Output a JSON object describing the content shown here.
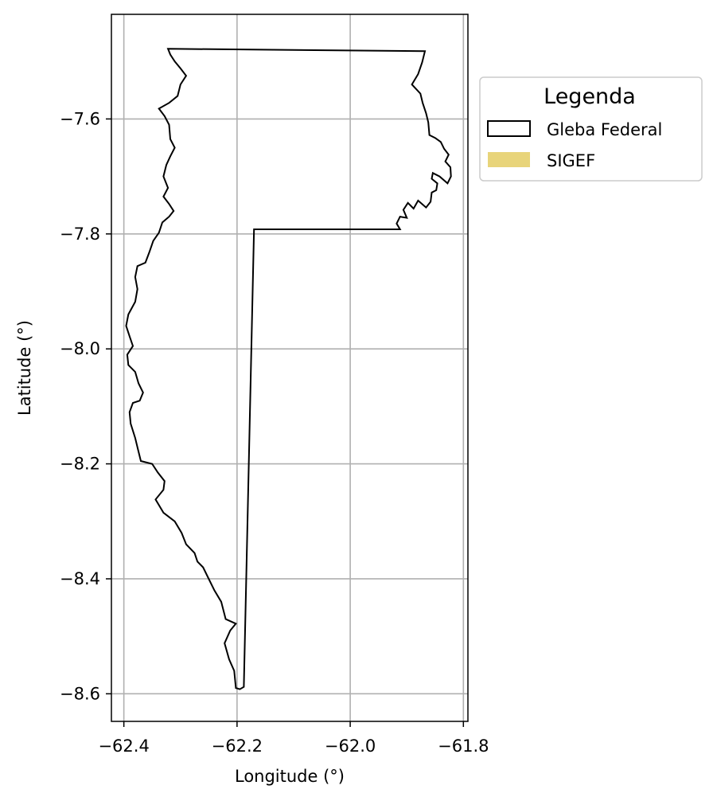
{
  "chart_data": {
    "type": "map",
    "xlabel": "Longitude (°)",
    "ylabel": "Latitude (°)",
    "xlim": [
      -62.422,
      -61.792
    ],
    "ylim": [
      -8.648,
      -7.418
    ],
    "x_ticks": [
      -62.4,
      -62.2,
      -62.0,
      -61.8
    ],
    "x_tick_labels": [
      "−62.4",
      "−62.2",
      "−62.0",
      "−61.8"
    ],
    "y_ticks": [
      -7.6,
      -7.8,
      -8.0,
      -8.2,
      -8.4,
      -8.6
    ],
    "y_tick_labels": [
      "−7.6",
      "−7.8",
      "−8.0",
      "−8.2",
      "−8.4",
      "−8.6"
    ],
    "grid": true,
    "legend": {
      "title": "Legenda",
      "placement": "outside-right-top",
      "entries": [
        {
          "label": "Gleba Federal",
          "style": "outline",
          "color": "#000000"
        },
        {
          "label": "SIGEF",
          "style": "fill",
          "color": "#E8D47A"
        }
      ]
    },
    "layers": [
      {
        "name": "Gleba Federal",
        "edgecolor": "#000000",
        "facecolor": "none",
        "polygon": [
          [
            -62.322,
            -7.478
          ],
          [
            -61.868,
            -7.482
          ],
          [
            -61.873,
            -7.502
          ],
          [
            -61.88,
            -7.522
          ],
          [
            -61.891,
            -7.54
          ],
          [
            -61.876,
            -7.556
          ],
          [
            -61.872,
            -7.572
          ],
          [
            -61.866,
            -7.59
          ],
          [
            -61.862,
            -7.606
          ],
          [
            -61.86,
            -7.628
          ],
          [
            -61.85,
            -7.633
          ],
          [
            -61.84,
            -7.64
          ],
          [
            -61.834,
            -7.652
          ],
          [
            -61.826,
            -7.662
          ],
          [
            -61.832,
            -7.674
          ],
          [
            -61.823,
            -7.684
          ],
          [
            -61.822,
            -7.7
          ],
          [
            -61.828,
            -7.712
          ],
          [
            -61.842,
            -7.7
          ],
          [
            -61.854,
            -7.694
          ],
          [
            -61.856,
            -7.704
          ],
          [
            -61.846,
            -7.712
          ],
          [
            -61.848,
            -7.724
          ],
          [
            -61.856,
            -7.728
          ],
          [
            -61.858,
            -7.744
          ],
          [
            -61.866,
            -7.754
          ],
          [
            -61.88,
            -7.742
          ],
          [
            -61.888,
            -7.756
          ],
          [
            -61.898,
            -7.746
          ],
          [
            -61.906,
            -7.758
          ],
          [
            -61.9,
            -7.772
          ],
          [
            -61.912,
            -7.77
          ],
          [
            -61.918,
            -7.782
          ],
          [
            -61.912,
            -7.792
          ],
          [
            -62.17,
            -7.792
          ],
          [
            -62.188,
            -8.588
          ],
          [
            -62.195,
            -8.592
          ],
          [
            -62.202,
            -8.59
          ],
          [
            -62.205,
            -8.56
          ],
          [
            -62.214,
            -8.54
          ],
          [
            -62.222,
            -8.512
          ],
          [
            -62.212,
            -8.49
          ],
          [
            -62.202,
            -8.478
          ],
          [
            -62.22,
            -8.47
          ],
          [
            -62.228,
            -8.44
          ],
          [
            -62.24,
            -8.42
          ],
          [
            -62.25,
            -8.4
          ],
          [
            -62.26,
            -8.38
          ],
          [
            -62.27,
            -8.37
          ],
          [
            -62.275,
            -8.355
          ],
          [
            -62.29,
            -8.34
          ],
          [
            -62.298,
            -8.32
          ],
          [
            -62.31,
            -8.3
          ],
          [
            -62.33,
            -8.285
          ],
          [
            -62.344,
            -8.262
          ],
          [
            -62.33,
            -8.245
          ],
          [
            -62.328,
            -8.23
          ],
          [
            -62.34,
            -8.215
          ],
          [
            -62.35,
            -8.2
          ],
          [
            -62.37,
            -8.195
          ],
          [
            -62.375,
            -8.175
          ],
          [
            -62.38,
            -8.155
          ],
          [
            -62.388,
            -8.13
          ],
          [
            -62.39,
            -8.11
          ],
          [
            -62.384,
            -8.094
          ],
          [
            -62.372,
            -8.09
          ],
          [
            -62.366,
            -8.076
          ],
          [
            -62.374,
            -8.06
          ],
          [
            -62.38,
            -8.04
          ],
          [
            -62.392,
            -8.028
          ],
          [
            -62.394,
            -8.01
          ],
          [
            -62.384,
            -7.995
          ],
          [
            -62.39,
            -7.978
          ],
          [
            -62.396,
            -7.96
          ],
          [
            -62.392,
            -7.94
          ],
          [
            -62.38,
            -7.918
          ],
          [
            -62.376,
            -7.896
          ],
          [
            -62.38,
            -7.875
          ],
          [
            -62.376,
            -7.856
          ],
          [
            -62.362,
            -7.85
          ],
          [
            -62.355,
            -7.832
          ],
          [
            -62.348,
            -7.812
          ],
          [
            -62.338,
            -7.798
          ],
          [
            -62.332,
            -7.78
          ],
          [
            -62.32,
            -7.77
          ],
          [
            -62.312,
            -7.76
          ],
          [
            -62.32,
            -7.748
          ],
          [
            -62.33,
            -7.735
          ],
          [
            -62.322,
            -7.72
          ],
          [
            -62.33,
            -7.7
          ],
          [
            -62.325,
            -7.68
          ],
          [
            -62.318,
            -7.665
          ],
          [
            -62.31,
            -7.65
          ],
          [
            -62.318,
            -7.635
          ],
          [
            -62.32,
            -7.61
          ],
          [
            -62.328,
            -7.595
          ],
          [
            -62.338,
            -7.582
          ],
          [
            -62.32,
            -7.572
          ],
          [
            -62.305,
            -7.56
          ],
          [
            -62.3,
            -7.54
          ],
          [
            -62.29,
            -7.525
          ],
          [
            -62.3,
            -7.512
          ],
          [
            -62.31,
            -7.5
          ],
          [
            -62.318,
            -7.488
          ],
          [
            -62.322,
            -7.478
          ]
        ]
      },
      {
        "name": "SIGEF",
        "facecolor": "#E8D47A",
        "features": []
      }
    ]
  }
}
